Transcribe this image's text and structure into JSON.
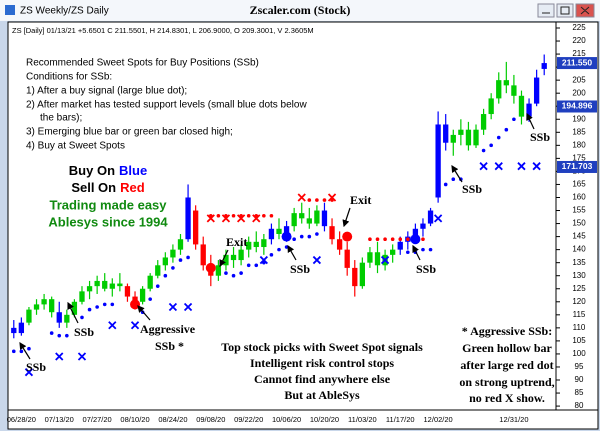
{
  "window": {
    "title": "ZS Weekly/ZS Daily",
    "app_title": "Zscaler.com (Stock)"
  },
  "chart_data": {
    "type": "candlestick",
    "info": "ZS [Daily] 01/13/21 +5.6501 C 211.5501, H 214.8301, L 206.9000, O 209.3001, V 2.3605M",
    "categories": [
      null,
      "06/28/20",
      null,
      null,
      null,
      null,
      "07/13/20",
      null,
      null,
      null,
      null,
      "07/27/20",
      null,
      null,
      null,
      null,
      "08/10/20",
      null,
      null,
      null,
      null,
      "08/24/20",
      null,
      null,
      null,
      null,
      "09/08/20",
      null,
      null,
      null,
      null,
      "09/22/20",
      null,
      null,
      null,
      null,
      "10/06/20",
      null,
      null,
      null,
      null,
      "10/20/20",
      null,
      null,
      null,
      null,
      "11/03/20",
      null,
      null,
      null,
      null,
      "11/17/20",
      null,
      null,
      null,
      null,
      "12/02/20",
      null,
      null,
      null,
      null,
      null,
      null,
      null,
      null,
      null,
      "12/31/20",
      null,
      null,
      null,
      null
    ],
    "open": [
      110,
      108,
      112,
      117,
      119,
      121,
      116,
      112,
      115,
      120,
      124,
      126,
      128,
      125,
      127,
      126,
      122,
      120,
      125,
      130,
      134,
      137,
      140,
      144,
      155,
      142,
      134,
      130,
      134,
      138,
      136,
      140,
      143,
      141,
      144,
      148,
      146,
      149,
      154,
      152,
      150,
      155,
      149,
      144,
      140,
      133,
      126,
      135,
      139,
      134,
      138,
      140,
      143,
      145,
      148,
      150,
      160,
      188,
      181,
      184,
      186,
      180,
      186,
      192,
      198,
      205,
      203,
      199,
      191,
      196,
      209.3001
    ],
    "high": [
      113,
      114,
      118,
      121,
      123,
      122,
      120,
      117,
      121,
      126,
      128,
      130,
      131,
      129,
      131,
      127,
      124,
      126,
      131,
      136,
      139,
      142,
      146,
      165,
      157,
      145,
      138,
      136,
      140,
      141,
      142,
      145,
      147,
      146,
      150,
      152,
      151,
      156,
      158,
      156,
      157,
      158,
      152,
      147,
      143,
      136,
      137,
      141,
      143,
      140,
      142,
      145,
      147,
      150,
      152,
      156,
      193,
      192,
      186,
      190,
      189,
      188,
      194,
      200,
      208,
      212,
      207,
      201,
      198,
      209,
      214.8301
    ],
    "low": [
      106,
      107,
      111,
      115,
      117,
      114,
      110,
      110,
      114,
      119,
      121,
      123,
      124,
      122,
      124,
      120,
      117,
      119,
      124,
      129,
      132,
      135,
      138,
      143,
      140,
      132,
      126,
      128,
      132,
      133,
      134,
      137,
      139,
      138,
      142,
      144,
      143,
      147,
      150,
      148,
      149,
      147,
      142,
      138,
      130,
      122,
      125,
      133,
      131,
      132,
      135,
      138,
      140,
      143,
      145,
      149,
      158,
      178,
      176,
      180,
      178,
      179,
      184,
      190,
      196,
      200,
      196,
      188,
      189,
      195,
      206.9
    ],
    "close": [
      108,
      112,
      117,
      119,
      121,
      116,
      112,
      115,
      120,
      124,
      126,
      128,
      125,
      127,
      126,
      122,
      120,
      125,
      130,
      134,
      137,
      140,
      144,
      160,
      142,
      134,
      130,
      134,
      138,
      136,
      140,
      143,
      141,
      144,
      148,
      146,
      149,
      154,
      152,
      150,
      155,
      149,
      144,
      140,
      133,
      126,
      135,
      139,
      134,
      138,
      140,
      143,
      145,
      148,
      150,
      155,
      188,
      181,
      184,
      186,
      180,
      186,
      192,
      198,
      205,
      203,
      199,
      191,
      196,
      206,
      211.5501
    ],
    "colors": [
      "#0000ff",
      "#0000ff",
      "#00cc00",
      "#00cc00",
      "#00cc00",
      "#00cc00",
      "#0000ff",
      "#00cc00",
      "#00cc00",
      "#00cc00",
      "#00cc00",
      "#00cc00",
      "#00cc00",
      "#00cc00",
      "#00cc00",
      "#ff0000",
      "#ff0000",
      "#00cc00",
      "#00cc00",
      "#00cc00",
      "#00cc00",
      "#00cc00",
      "#00cc00",
      "#0000ff",
      "#ff0000",
      "#ff0000",
      "#ff0000",
      "#00cc00",
      "#00cc00",
      "#00cc00",
      "#00cc00",
      "#00cc00",
      "#00cc00",
      "#00cc00",
      "#0000ff",
      "#00cc00",
      "#0000ff",
      "#00cc00",
      "#00cc00",
      "#00cc00",
      "#00cc00",
      "#0000ff",
      "#ff0000",
      "#ff0000",
      "#ff0000",
      "#ff0000",
      "#00cc00",
      "#00cc00",
      "#00cc00",
      "#00cc00",
      "#00cc00",
      "#0000ff",
      "#0000ff",
      "#0000ff",
      "#0000ff",
      "#0000ff",
      "#0000ff",
      "#0000ff",
      "#00cc00",
      "#00cc00",
      "#00cc00",
      "#00cc00",
      "#00cc00",
      "#00cc00",
      "#00cc00",
      "#00cc00",
      "#00cc00",
      "#00cc00",
      "#0000ff",
      "#0000ff",
      "#0000ff"
    ],
    "markers": [
      {
        "shape": "dot",
        "color": "#0000ff",
        "values": [
          101,
          101,
          102,
          null,
          null,
          108,
          107,
          107,
          null,
          114,
          117,
          118,
          119,
          119,
          null,
          null,
          null,
          116,
          121,
          126,
          130,
          133,
          136,
          137,
          null,
          null,
          null,
          null,
          131,
          130,
          131,
          134,
          134,
          135,
          138,
          140,
          141,
          144,
          145,
          145,
          146,
          null,
          null,
          null,
          null,
          null,
          null,
          null,
          null,
          null,
          null,
          null,
          139,
          139,
          140,
          140,
          null,
          165,
          167,
          167,
          null,
          null,
          178,
          180,
          183,
          186,
          190,
          null,
          null,
          null,
          null
        ]
      },
      {
        "shape": "dot",
        "color": "#ff0000",
        "values": [
          null,
          null,
          null,
          null,
          null,
          null,
          null,
          null,
          null,
          null,
          null,
          null,
          null,
          null,
          null,
          null,
          null,
          null,
          null,
          null,
          null,
          null,
          null,
          null,
          null,
          null,
          153,
          153,
          153,
          153,
          153,
          153,
          153,
          153,
          153,
          null,
          null,
          null,
          null,
          159,
          159,
          159,
          159,
          null,
          null,
          null,
          null,
          144,
          144,
          144,
          144,
          144,
          144,
          144,
          144,
          null,
          null,
          null,
          null,
          null,
          null,
          null,
          null,
          null,
          null,
          null,
          null,
          null,
          null,
          null,
          null
        ]
      },
      {
        "shape": "x",
        "color": "#0000ff",
        "values": [
          null,
          null,
          93,
          null,
          null,
          null,
          99,
          null,
          null,
          99,
          null,
          null,
          null,
          111,
          null,
          null,
          111,
          null,
          null,
          null,
          null,
          118,
          null,
          118,
          null,
          null,
          null,
          null,
          null,
          null,
          null,
          null,
          null,
          136,
          null,
          null,
          null,
          null,
          null,
          null,
          136,
          null,
          null,
          null,
          null,
          null,
          null,
          null,
          null,
          136,
          null,
          null,
          null,
          null,
          null,
          null,
          152,
          null,
          null,
          null,
          null,
          null,
          172,
          null,
          172,
          null,
          null,
          172,
          null,
          172,
          null
        ]
      },
      {
        "shape": "x",
        "color": "#ff0000",
        "values": [
          null,
          null,
          null,
          null,
          null,
          null,
          null,
          null,
          null,
          null,
          null,
          null,
          null,
          null,
          null,
          null,
          null,
          null,
          null,
          null,
          null,
          null,
          null,
          null,
          null,
          null,
          152,
          null,
          152,
          null,
          152,
          null,
          152,
          null,
          null,
          null,
          null,
          null,
          160,
          null,
          null,
          null,
          160,
          null,
          null,
          null,
          null,
          null,
          null,
          null,
          null,
          null,
          null,
          null,
          null,
          null,
          null,
          null,
          null,
          null,
          null,
          null,
          null,
          null,
          null,
          null,
          null,
          null,
          null,
          null,
          null
        ]
      },
      {
        "shape": "big-dot",
        "color": "#ff0000",
        "values": [
          null,
          null,
          null,
          null,
          null,
          null,
          null,
          null,
          null,
          null,
          null,
          null,
          null,
          null,
          null,
          null,
          119,
          null,
          null,
          null,
          null,
          null,
          null,
          null,
          null,
          null,
          133,
          null,
          null,
          null,
          null,
          null,
          null,
          null,
          null,
          null,
          null,
          null,
          null,
          null,
          null,
          null,
          null,
          null,
          145,
          null,
          null,
          null,
          null,
          null,
          null,
          null,
          null,
          null,
          null,
          null,
          null,
          null,
          null,
          null,
          null,
          null,
          null,
          null,
          null,
          null,
          null,
          null,
          null,
          null,
          null
        ]
      },
      {
        "shape": "big-dot",
        "color": "#0000ff",
        "values": [
          null,
          null,
          null,
          null,
          null,
          null,
          null,
          null,
          null,
          null,
          null,
          null,
          null,
          null,
          null,
          null,
          null,
          null,
          null,
          null,
          null,
          null,
          null,
          null,
          null,
          null,
          null,
          null,
          null,
          null,
          null,
          null,
          null,
          null,
          null,
          null,
          145,
          null,
          null,
          null,
          null,
          null,
          null,
          null,
          null,
          null,
          null,
          null,
          null,
          null,
          null,
          null,
          null,
          144,
          null,
          null,
          null,
          null,
          null,
          null,
          null,
          null,
          null,
          null,
          null,
          null,
          null,
          null,
          null,
          null,
          null
        ]
      }
    ],
    "ylim": [
      78.5,
      227.3
    ],
    "yticks": [
      80,
      85,
      90,
      95,
      100,
      105,
      110,
      115,
      120,
      125,
      130,
      135,
      140,
      145,
      150,
      155,
      160,
      165,
      170,
      175,
      180,
      185,
      190,
      195,
      200,
      205,
      210,
      215,
      220,
      225
    ],
    "price_labels": [
      {
        "value": 211.55,
        "label": "211.550"
      },
      194.896,
      171.703
    ],
    "price_label_color": "#1f3fbf",
    "notes": [
      "Recommended Sweet Spots for Buy Positions (SSb)",
      "Conditions for SSb:",
      "1) After a buy signal (large blue dot);",
      "2) After market has tested support levels (small blue dots below",
      "the bars);",
      "3) Emerging blue bar or green bar closed high;",
      "4) Buy at Sweet Spots"
    ],
    "slogan": {
      "buy": [
        "Buy On",
        "Blue"
      ],
      "sell": [
        "Sell On",
        "Red"
      ],
      "lines": [
        "Trading made easy",
        "Ablesys since 1994"
      ]
    },
    "annotations": [
      "SSb",
      "SSb",
      "Aggressive",
      "SSb *",
      "Exit",
      "Exit",
      "SSb",
      "SSb",
      "SSb",
      "SSb"
    ],
    "promo": [
      "Top stock picks with Sweet Spot signals",
      "Intelligent risk control stops",
      "Cannot find anywhere else",
      "But at AbleSys"
    ],
    "aggressive_note": [
      "* Aggressive SSb:",
      "Green hollow bar",
      "after large red dot",
      "on strong uptrend,",
      "no red X show."
    ]
  }
}
